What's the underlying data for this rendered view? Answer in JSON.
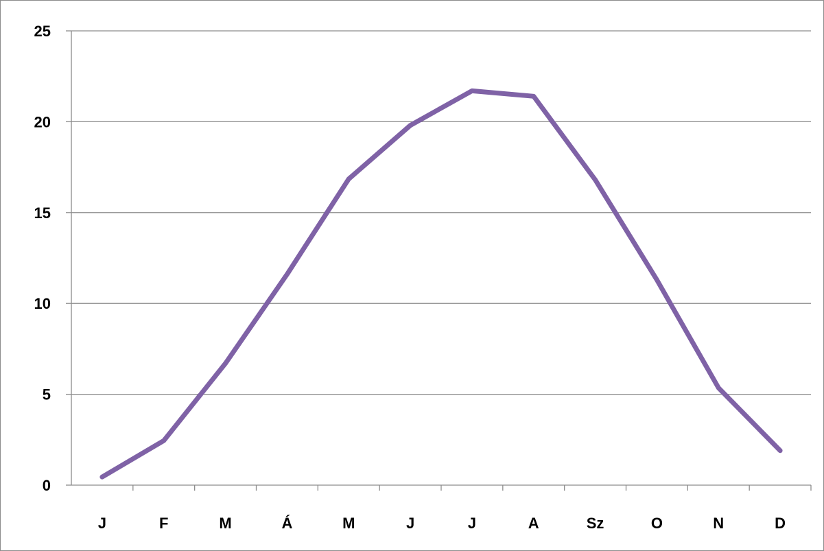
{
  "chart_data": {
    "type": "line",
    "title": "",
    "xlabel": "",
    "ylabel": "",
    "categories": [
      "J",
      "F",
      "M",
      "Á",
      "M",
      "J",
      "J",
      "A",
      "Sz",
      "O",
      "N",
      "D"
    ],
    "series": [
      {
        "values": [
          0.45,
          2.45,
          6.7,
          11.6,
          16.85,
          19.8,
          21.7,
          21.4,
          16.8,
          11.3,
          5.35,
          1.9
        ],
        "color": "#7f62a6"
      }
    ],
    "ylim": [
      0,
      25
    ],
    "yticks": [
      "0",
      "5",
      "10",
      "15",
      "20",
      "25"
    ],
    "grid": "horizontal",
    "legend": "none"
  }
}
